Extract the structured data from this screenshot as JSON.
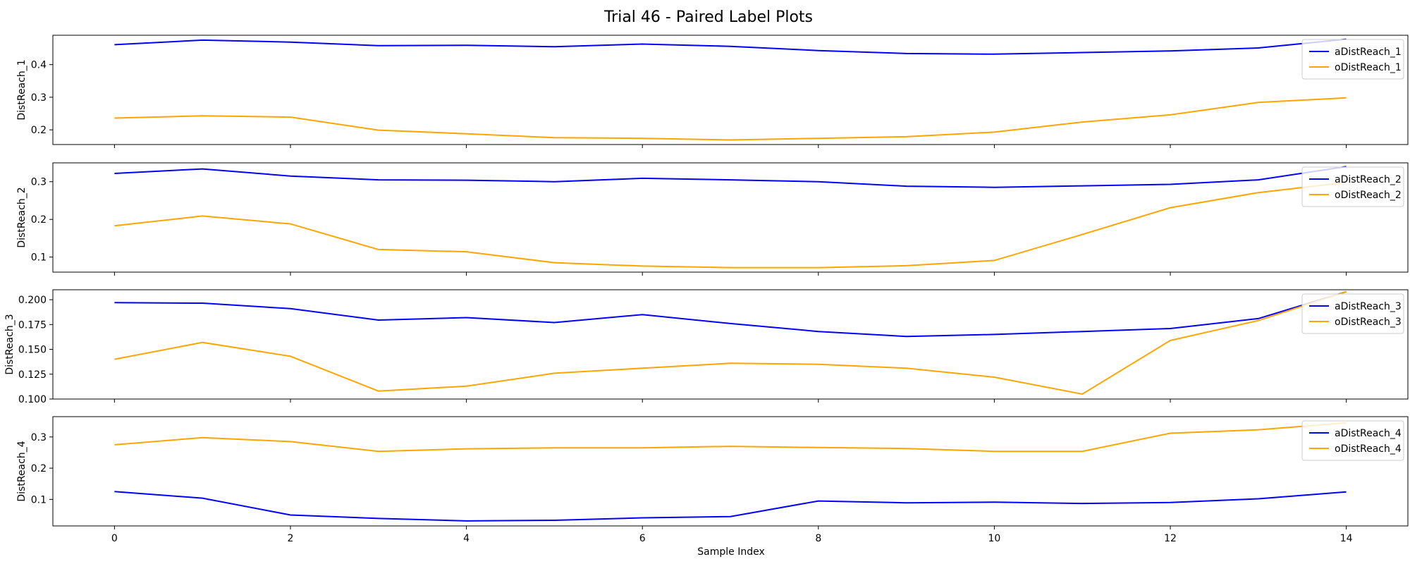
{
  "figure": {
    "title": "Trial 46 - Paired Label Plots",
    "xlabel": "Sample Index"
  },
  "chart_data": [
    {
      "type": "line",
      "ylabel": "DistReach_1",
      "x": [
        0,
        1,
        2,
        3,
        4,
        5,
        6,
        7,
        8,
        9,
        10,
        11,
        12,
        13,
        14
      ],
      "xlim": [
        -0.7,
        14.7
      ],
      "xticks": [
        0,
        2,
        4,
        6,
        8,
        10,
        12,
        14
      ],
      "ylim": [
        0.155,
        0.49
      ],
      "yticks": [
        0.2,
        0.3,
        0.4
      ],
      "ytick_labels": [
        "0.2",
        "0.3",
        "0.4"
      ],
      "legend_position": "upper right",
      "series": [
        {
          "name": "aDistReach_1",
          "color": "#0000ff",
          "values": [
            0.461,
            0.475,
            0.469,
            0.458,
            0.459,
            0.455,
            0.463,
            0.456,
            0.443,
            0.434,
            0.432,
            0.437,
            0.442,
            0.451,
            0.478
          ]
        },
        {
          "name": "oDistReach_1",
          "color": "#ffa500",
          "values": [
            0.236,
            0.243,
            0.239,
            0.199,
            0.188,
            0.176,
            0.174,
            0.169,
            0.174,
            0.179,
            0.193,
            0.224,
            0.246,
            0.284,
            0.298
          ]
        }
      ]
    },
    {
      "type": "line",
      "ylabel": "DistReach_2",
      "x": [
        0,
        1,
        2,
        3,
        4,
        5,
        6,
        7,
        8,
        9,
        10,
        11,
        12,
        13,
        14
      ],
      "xlim": [
        -0.7,
        14.7
      ],
      "xticks": [
        0,
        2,
        4,
        6,
        8,
        10,
        12,
        14
      ],
      "ylim": [
        0.06,
        0.35
      ],
      "yticks": [
        0.1,
        0.2,
        0.3
      ],
      "ytick_labels": [
        "0.1",
        "0.2",
        "0.3"
      ],
      "legend_position": "upper right",
      "series": [
        {
          "name": "aDistReach_2",
          "color": "#0000ff",
          "values": [
            0.322,
            0.334,
            0.315,
            0.305,
            0.304,
            0.3,
            0.309,
            0.305,
            0.3,
            0.288,
            0.285,
            0.289,
            0.293,
            0.305,
            0.34
          ]
        },
        {
          "name": "oDistReach_2",
          "color": "#ffa500",
          "values": [
            0.183,
            0.209,
            0.188,
            0.12,
            0.114,
            0.085,
            0.076,
            0.072,
            0.072,
            0.077,
            0.091,
            0.16,
            0.231,
            0.271,
            0.298
          ]
        }
      ]
    },
    {
      "type": "line",
      "ylabel": "DistReach_3",
      "x": [
        0,
        1,
        2,
        3,
        4,
        5,
        6,
        7,
        8,
        9,
        10,
        11,
        12,
        13,
        14
      ],
      "xlim": [
        -0.7,
        14.7
      ],
      "xticks": [
        0,
        2,
        4,
        6,
        8,
        10,
        12,
        14
      ],
      "ylim": [
        0.1,
        0.21
      ],
      "yticks": [
        0.1,
        0.125,
        0.15,
        0.175,
        0.2
      ],
      "ytick_labels": [
        "0.100",
        "0.125",
        "0.150",
        "0.175",
        "0.200"
      ],
      "legend_position": "upper right",
      "series": [
        {
          "name": "aDistReach_3",
          "color": "#0000ff",
          "values": [
            0.197,
            0.1965,
            0.191,
            0.1795,
            0.182,
            0.177,
            0.185,
            0.176,
            0.168,
            0.163,
            0.165,
            0.168,
            0.171,
            0.181,
            0.208
          ]
        },
        {
          "name": "oDistReach_3",
          "color": "#ffa500",
          "values": [
            0.14,
            0.157,
            0.143,
            0.108,
            0.113,
            0.126,
            0.131,
            0.136,
            0.135,
            0.131,
            0.122,
            0.105,
            0.159,
            0.179,
            0.208
          ]
        }
      ]
    },
    {
      "type": "line",
      "ylabel": "DistReach_4",
      "x": [
        0,
        1,
        2,
        3,
        4,
        5,
        6,
        7,
        8,
        9,
        10,
        11,
        12,
        13,
        14
      ],
      "xlim": [
        -0.7,
        14.7
      ],
      "xticks": [
        0,
        2,
        4,
        6,
        8,
        10,
        12,
        14
      ],
      "ylim": [
        0.015,
        0.365
      ],
      "yticks": [
        0.1,
        0.2,
        0.3
      ],
      "ytick_labels": [
        "0.1",
        "0.2",
        "0.3"
      ],
      "legend_position": "upper right",
      "series": [
        {
          "name": "aDistReach_4",
          "color": "#0000ff",
          "values": [
            0.125,
            0.104,
            0.05,
            0.039,
            0.031,
            0.033,
            0.041,
            0.045,
            0.095,
            0.089,
            0.091,
            0.087,
            0.09,
            0.102,
            0.124
          ]
        },
        {
          "name": "oDistReach_4",
          "color": "#ffa500",
          "values": [
            0.275,
            0.298,
            0.285,
            0.254,
            0.262,
            0.265,
            0.265,
            0.27,
            0.266,
            0.263,
            0.254,
            0.254,
            0.312,
            0.323,
            0.345
          ]
        }
      ]
    }
  ]
}
